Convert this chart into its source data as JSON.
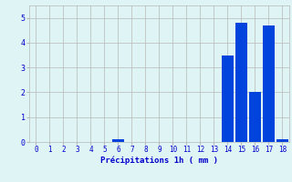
{
  "categories": [
    0,
    1,
    2,
    3,
    4,
    5,
    6,
    7,
    8,
    9,
    10,
    11,
    12,
    13,
    14,
    15,
    16,
    17,
    18
  ],
  "values": [
    0,
    0,
    0,
    0,
    0,
    0,
    0.1,
    0,
    0,
    0,
    0,
    0,
    0,
    0,
    3.5,
    4.8,
    2.0,
    4.7,
    0.1
  ],
  "bar_color": "#0044dd",
  "bg_color": "#dff4f4",
  "grid_color": "#b8b8b8",
  "xlabel": "Précipitations 1h ( mm )",
  "xlabel_color": "#0000cc",
  "tick_color": "#0000cc",
  "ylim": [
    0,
    5.5
  ],
  "yticks": [
    0,
    1,
    2,
    3,
    4,
    5
  ],
  "xlim": [
    -0.5,
    18.5
  ],
  "bar_width": 0.85
}
